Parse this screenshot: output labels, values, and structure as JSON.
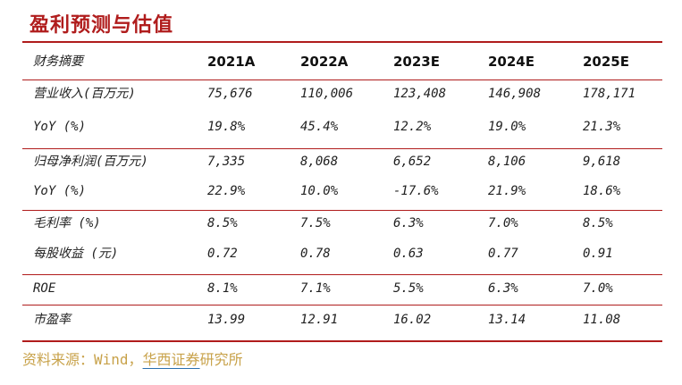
{
  "title": "盈利预测与估值",
  "table": {
    "header_label": "财务摘要",
    "years": [
      "2021A",
      "2022A",
      "2023E",
      "2024E",
      "2025E"
    ],
    "rows": [
      {
        "label": "营业收入(百万元)",
        "values": [
          "75,676",
          "110,006",
          "123,408",
          "146,908",
          "178,171"
        ]
      },
      {
        "label": "YoY (%)",
        "values": [
          "19.8%",
          "45.4%",
          "12.2%",
          "19.0%",
          "21.3%"
        ]
      },
      {
        "label": "归母净利润(百万元)",
        "values": [
          "7,335",
          "8,068",
          "6,652",
          "8,106",
          "9,618"
        ]
      },
      {
        "label": "YoY (%)",
        "values": [
          "22.9%",
          "10.0%",
          "-17.6%",
          "21.9%",
          "18.6%"
        ]
      },
      {
        "label": "毛利率 (%)",
        "values": [
          "8.5%",
          "7.5%",
          "6.3%",
          "7.0%",
          "8.5%"
        ]
      },
      {
        "label": "每股收益 (元)",
        "values": [
          "0.72",
          "0.78",
          "0.63",
          "0.77",
          "0.91"
        ]
      },
      {
        "label": "ROE",
        "values": [
          "8.1%",
          "7.1%",
          "5.5%",
          "6.3%",
          "7.0%"
        ]
      },
      {
        "label": "市盈率",
        "values": [
          "13.99",
          "12.91",
          "16.02",
          "13.14",
          "11.08"
        ]
      }
    ]
  },
  "source": {
    "prefix": "资料来源：Wind，",
    "org": "华西证券",
    "suffix": "研究所"
  },
  "colors": {
    "accent": "#b01c1c",
    "source_text": "#c8a24a"
  }
}
